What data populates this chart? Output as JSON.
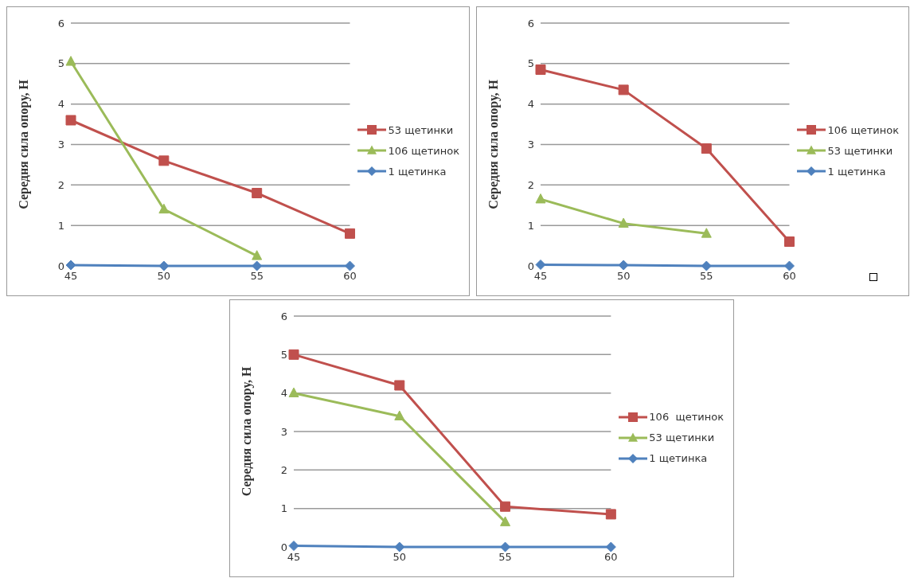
{
  "chart_data": [
    {
      "type": "line",
      "categories": [
        "45",
        "50",
        "55",
        "60"
      ],
      "ylabel": "Середня сила опору, Н",
      "ylim": [
        0,
        6
      ],
      "yticks": [
        0,
        1,
        2,
        3,
        4,
        5,
        6
      ],
      "grid": "y",
      "legend": "right",
      "series": [
        {
          "name": "53 щетинки",
          "color": "#c0504d",
          "marker": "square",
          "values": [
            3.6,
            2.6,
            1.8,
            0.8
          ]
        },
        {
          "name": "106 щетинок",
          "color": "#9bbb59",
          "marker": "triangle",
          "values": [
            5.05,
            1.4,
            0.25,
            null
          ]
        },
        {
          "name": "1 щетинка",
          "color": "#4f81bd",
          "marker": "diamond",
          "values": [
            0.02,
            0,
            0,
            0
          ]
        }
      ]
    },
    {
      "type": "line",
      "categories": [
        "45",
        "50",
        "55",
        "60"
      ],
      "ylabel": "Середня сила опору, Н",
      "ylim": [
        0,
        6
      ],
      "yticks": [
        0,
        1,
        2,
        3,
        4,
        5,
        6
      ],
      "grid": "y",
      "legend": "right",
      "series": [
        {
          "name": "106 щетинок",
          "color": "#c0504d",
          "marker": "square",
          "values": [
            4.85,
            4.35,
            2.9,
            0.6
          ]
        },
        {
          "name": "53 щетинки",
          "color": "#9bbb59",
          "marker": "triangle",
          "values": [
            1.65,
            1.05,
            0.8,
            null
          ]
        },
        {
          "name": "1 щетинка",
          "color": "#4f81bd",
          "marker": "diamond",
          "values": [
            0.03,
            0.02,
            0,
            0
          ]
        }
      ]
    },
    {
      "type": "line",
      "categories": [
        "45",
        "50",
        "55",
        "60"
      ],
      "ylabel": "Середня сила опору, Н",
      "ylim": [
        0,
        6
      ],
      "yticks": [
        0,
        1,
        2,
        3,
        4,
        5,
        6
      ],
      "grid": "y",
      "legend": "right",
      "series": [
        {
          "name": "106  щетинок",
          "color": "#c0504d",
          "marker": "square",
          "values": [
            5.0,
            4.2,
            1.05,
            0.85
          ]
        },
        {
          "name": "53 щетинки",
          "color": "#9bbb59",
          "marker": "triangle",
          "values": [
            4.0,
            3.4,
            0.65,
            null
          ]
        },
        {
          "name": "1 щетинка",
          "color": "#4f81bd",
          "marker": "diamond",
          "values": [
            0.03,
            0,
            0,
            0
          ]
        }
      ]
    }
  ]
}
